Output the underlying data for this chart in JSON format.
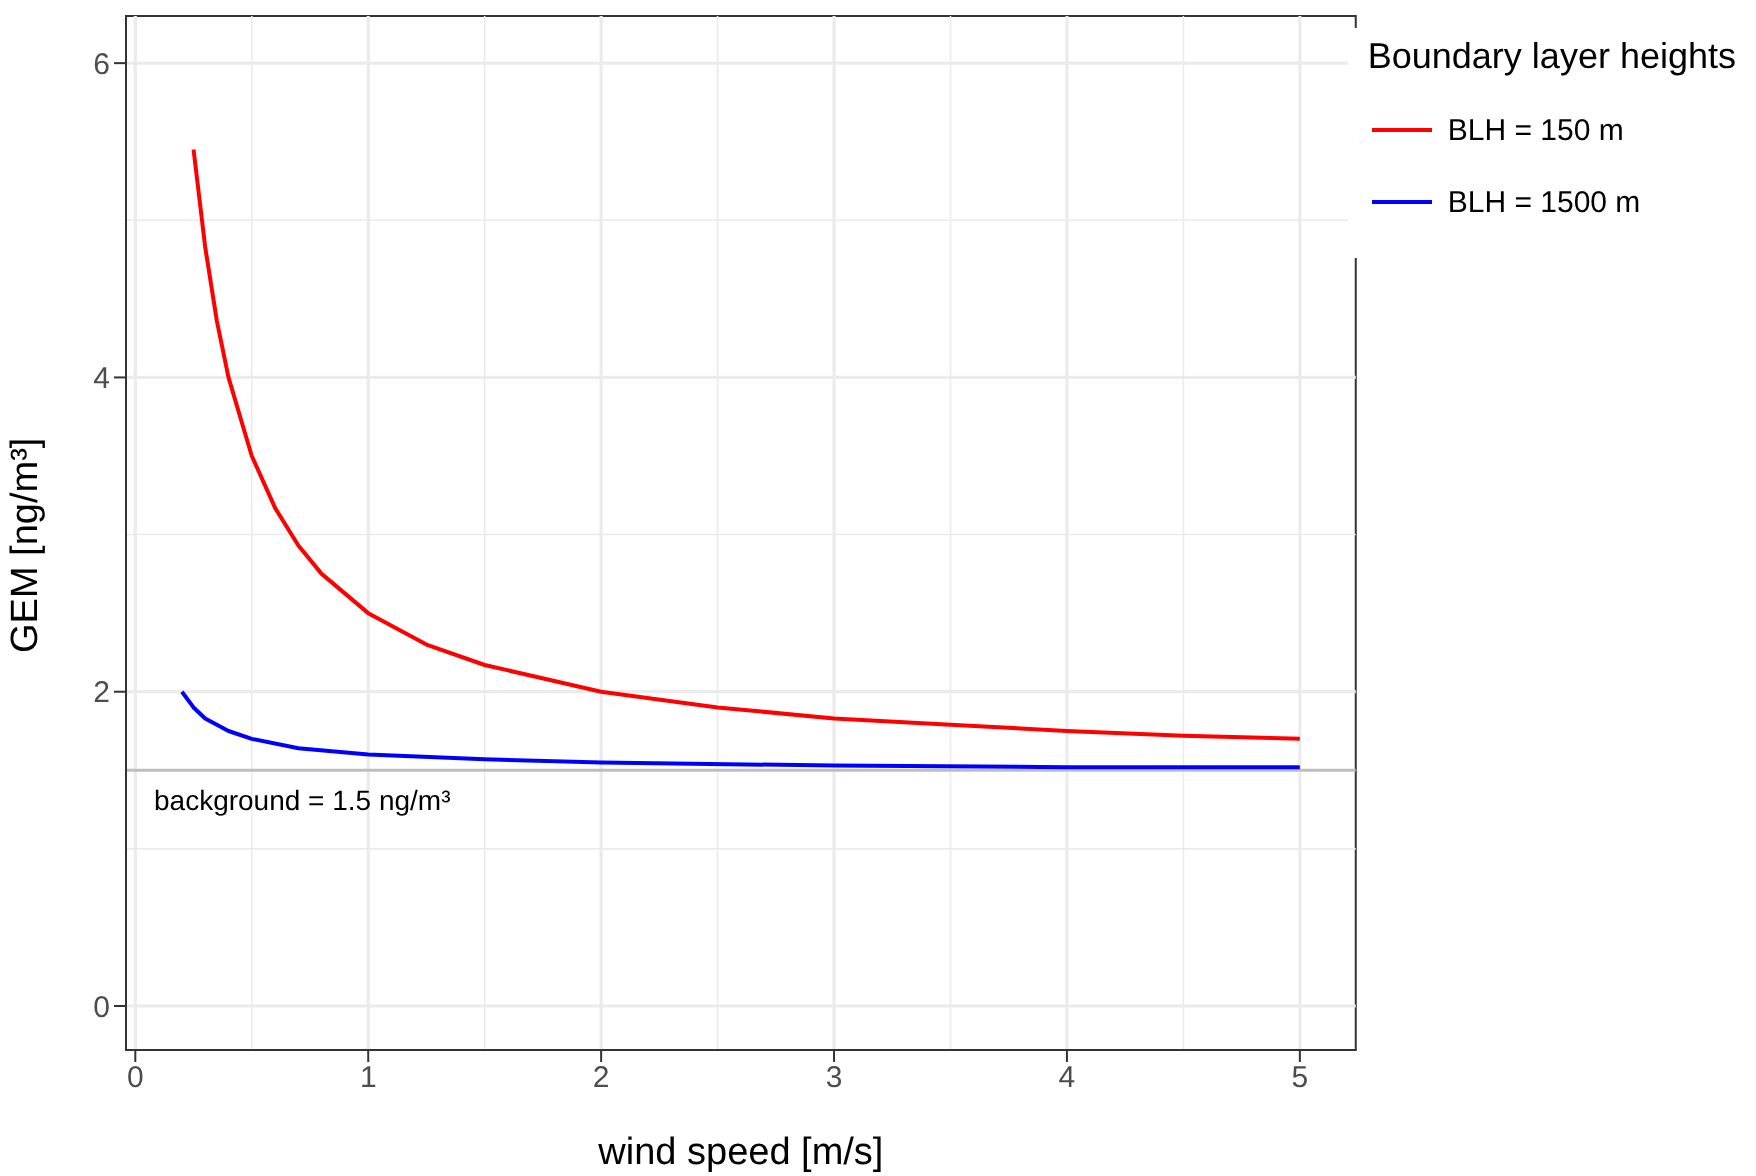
{
  "chart_data": {
    "type": "line",
    "xlabel": "wind speed [m/s]",
    "ylabel": "GEM [ng/m³]",
    "legend_title": "Boundary layer heights",
    "xlim": [
      -0.04,
      5.24
    ],
    "xticks": [
      0,
      1,
      2,
      3,
      4,
      5
    ],
    "ylim": [
      -0.28,
      6.3
    ],
    "yticks": [
      0,
      2,
      4,
      6
    ],
    "grid": true,
    "legend": "top right",
    "marker": "none",
    "line_style": "solid",
    "series": [
      {
        "name": "BLH = 150 m",
        "color": "#ff0000",
        "x": [
          0.25,
          0.3,
          0.35,
          0.4,
          0.5,
          0.6,
          0.7,
          0.8,
          1,
          1.25,
          1.5,
          2,
          2.5,
          3,
          3.5,
          4,
          4.5,
          5
        ],
        "values": [
          5.45,
          4.83,
          4.36,
          4.0,
          3.5,
          3.17,
          2.93,
          2.75,
          2.5,
          2.3,
          2.17,
          2.0,
          1.9,
          1.83,
          1.79,
          1.75,
          1.72,
          1.7
        ]
      },
      {
        "name": "BLH = 1500 m",
        "color": "#0000ff",
        "x": [
          0.2,
          0.25,
          0.3,
          0.4,
          0.5,
          0.7,
          1,
          1.5,
          2,
          3,
          4,
          5
        ],
        "values": [
          2.0,
          1.9,
          1.83,
          1.75,
          1.7,
          1.64,
          1.6,
          1.57,
          1.55,
          1.53,
          1.52,
          1.52
        ]
      }
    ],
    "ref_lines": [
      {
        "axis": "y",
        "value": 1.5,
        "label": "background = 1.5 ng/m³",
        "color": "#bebebe"
      }
    ]
  }
}
